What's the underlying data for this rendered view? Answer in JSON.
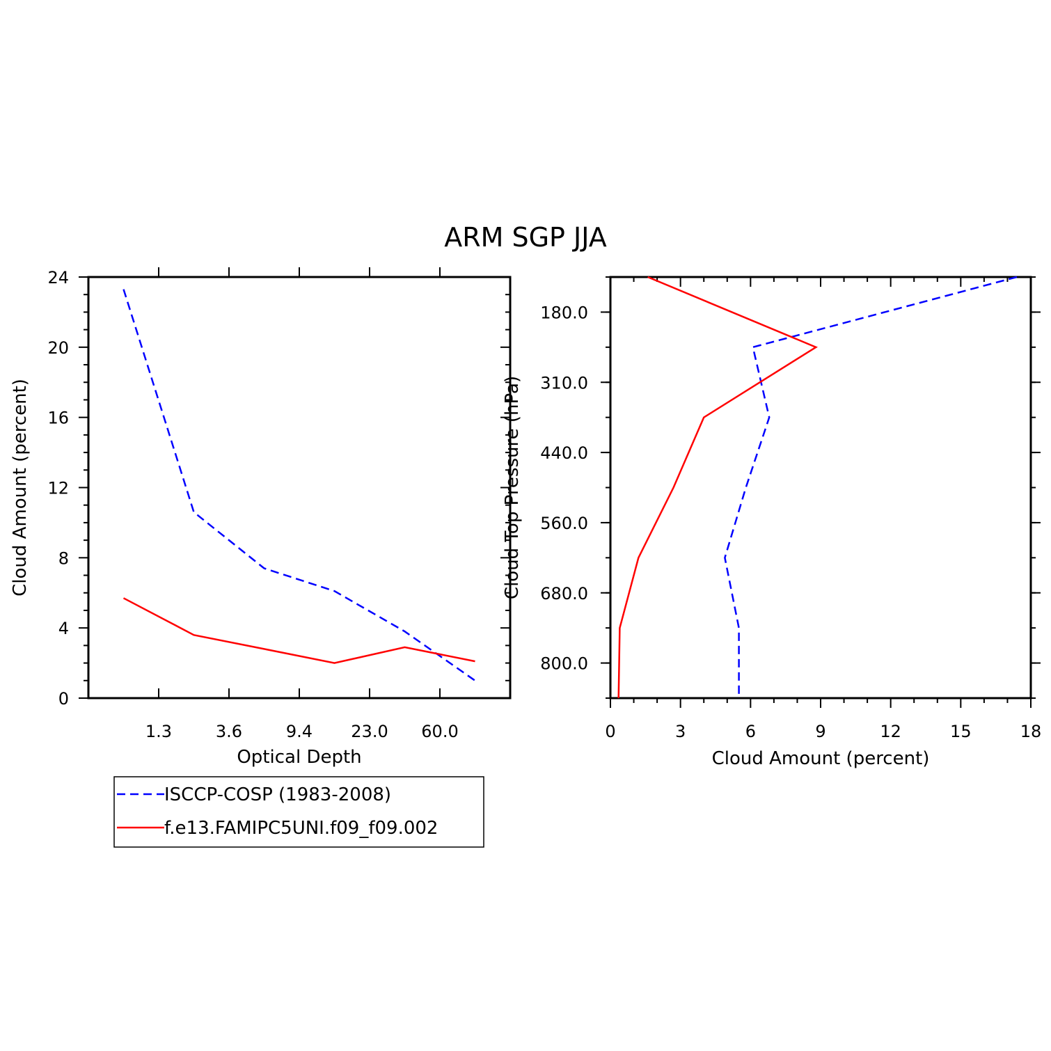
{
  "title": "ARM  SGP  JJA",
  "colors": {
    "obs": "#0000ff",
    "model": "#ff0000",
    "axis": "#000000"
  },
  "legend": {
    "placement": "below-left-panel",
    "entries": [
      {
        "label": "ISCCP-COSP (1983-2008)",
        "color": "#0000ff",
        "dash": "dashed"
      },
      {
        "label": "f.e13.FAMIPC5UNI.f09_f09.002",
        "color": "#ff0000",
        "dash": "solid"
      }
    ]
  },
  "chart_data": [
    {
      "type": "line",
      "xlabel": "Optical Depth",
      "ylabel": "Cloud Amount (percent)",
      "x_tick_labels": [
        "1.3",
        "3.6",
        "9.4",
        "23.0",
        "60.0"
      ],
      "x_bins": 6,
      "x": [
        0.5,
        1.5,
        2.5,
        3.5,
        4.5,
        5.5
      ],
      "ylim": [
        0,
        24
      ],
      "y_ticks": [
        "0",
        "4",
        "8",
        "12",
        "16",
        "20",
        "24"
      ],
      "series": [
        {
          "name": "ISCCP-COSP (1983-2008)",
          "values": [
            23.3,
            10.6,
            7.4,
            6.1,
            3.8,
            1.0
          ]
        },
        {
          "name": "f.e13.FAMIPC5UNI.f09_f09.002",
          "values": [
            5.7,
            3.6,
            2.8,
            2.0,
            2.9,
            2.1
          ]
        }
      ]
    },
    {
      "type": "line",
      "xlabel": "Cloud Amount (percent)",
      "ylabel": "Cloud Top Pressure (hPa)",
      "xlim": [
        0,
        18
      ],
      "x_ticks": [
        "0",
        "3",
        "6",
        "9",
        "12",
        "15",
        "18"
      ],
      "y_tick_labels": [
        "180.0",
        "310.0",
        "440.0",
        "560.0",
        "680.0",
        "800.0"
      ],
      "y_bins": 6,
      "y": [
        0,
        1,
        2,
        3,
        4,
        5,
        6
      ],
      "series": [
        {
          "name": "ISCCP-COSP (1983-2008)",
          "values": [
            17.4,
            6.1,
            6.8,
            5.8,
            4.9,
            5.5,
            5.5
          ]
        },
        {
          "name": "f.e13.FAMIPC5UNI.f09_f09.002",
          "values": [
            1.6,
            8.8,
            4.0,
            2.7,
            1.2,
            0.4,
            0.35
          ]
        }
      ]
    }
  ]
}
